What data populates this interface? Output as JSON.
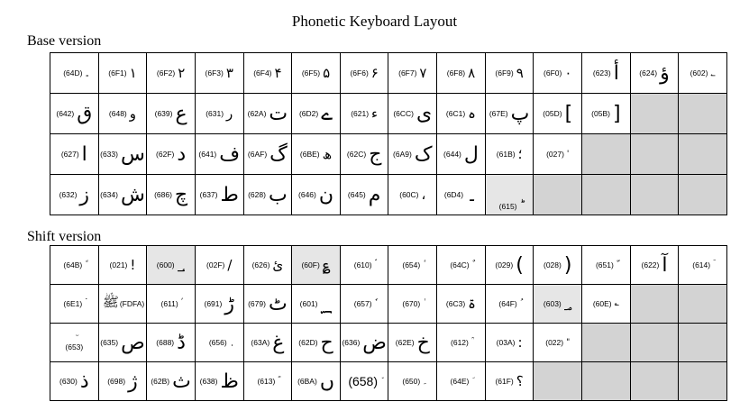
{
  "title": "Phonetic Keyboard Layout",
  "base": {
    "heading": "Base version",
    "rows": [
      [
        {
          "code": "(64D)",
          "glyph": "ٍ",
          "size": "small"
        },
        {
          "code": "(6F1)",
          "glyph": "۱"
        },
        {
          "code": "(6F2)",
          "glyph": "۲"
        },
        {
          "code": "(6F3)",
          "glyph": "۳"
        },
        {
          "code": "(6F4)",
          "glyph": "۴"
        },
        {
          "code": "(6F5)",
          "glyph": "۵"
        },
        {
          "code": "(6F6)",
          "glyph": "۶"
        },
        {
          "code": "(6F7)",
          "glyph": "۷"
        },
        {
          "code": "(6F8)",
          "glyph": "۸"
        },
        {
          "code": "(6F9)",
          "glyph": "۹"
        },
        {
          "code": "(6F0)",
          "glyph": "۰"
        },
        {
          "code": "(623)",
          "glyph": "أ",
          "size": "big"
        },
        {
          "code": "(624)",
          "glyph": "ؤ",
          "size": "big"
        },
        {
          "code": "(602)",
          "glyph": "؂",
          "size": "small"
        }
      ],
      [
        {
          "code": "(642)",
          "glyph": "ق",
          "size": "big",
          "glyph_first": false
        },
        {
          "code": "(648)",
          "glyph": "و"
        },
        {
          "code": "(639)",
          "glyph": "ع",
          "size": "big"
        },
        {
          "code": "(631)",
          "glyph": "ر"
        },
        {
          "code": "(62A)",
          "glyph": "ت",
          "size": "big"
        },
        {
          "code": "(6D2)",
          "glyph": "ے",
          "size": "big"
        },
        {
          "code": "(621)",
          "glyph": "ء"
        },
        {
          "code": "(6CC)",
          "glyph": "ی",
          "size": "big"
        },
        {
          "code": "(6C1)",
          "glyph": "ہ"
        },
        {
          "code": "(67E)",
          "glyph": "پ",
          "size": "big"
        },
        {
          "code": "(05D)",
          "glyph": "[",
          "size": "big"
        },
        {
          "code": "(05B)",
          "glyph": "]",
          "size": "big"
        },
        {
          "code": "",
          "glyph": "",
          "shade": "dark"
        },
        {
          "code": "",
          "glyph": "",
          "shade": "dark"
        }
      ],
      [
        {
          "code": "(627)",
          "glyph": "ا",
          "size": "big"
        },
        {
          "code": "(633)",
          "glyph": "س",
          "size": "big"
        },
        {
          "code": "(62F)",
          "glyph": "د",
          "size": "big"
        },
        {
          "code": "(641)",
          "glyph": "ف",
          "size": "big"
        },
        {
          "code": "(6AF)",
          "glyph": "گ",
          "size": "big"
        },
        {
          "code": "(6BE)",
          "glyph": "ھ"
        },
        {
          "code": "(62C)",
          "glyph": "ج",
          "size": "big"
        },
        {
          "code": "(6A9)",
          "glyph": "ک",
          "size": "big"
        },
        {
          "code": "(644)",
          "glyph": "ل",
          "size": "big"
        },
        {
          "code": "(61B)",
          "glyph": "؛"
        },
        {
          "code": "(027)",
          "glyph": "'",
          "size": "small"
        },
        {
          "code": "",
          "glyph": "",
          "shade": "dark"
        },
        {
          "code": "",
          "glyph": "",
          "shade": "dark"
        },
        {
          "code": "",
          "glyph": "",
          "shade": "dark"
        }
      ],
      [
        {
          "code": "(632)",
          "glyph": "ز",
          "size": "big"
        },
        {
          "code": "(634)",
          "glyph": "ش",
          "size": "big"
        },
        {
          "code": "(686)",
          "glyph": "چ",
          "size": "big"
        },
        {
          "code": "(637)",
          "glyph": "ط",
          "size": "big"
        },
        {
          "code": "(628)",
          "glyph": "ب",
          "size": "big"
        },
        {
          "code": "(646)",
          "glyph": "ن",
          "size": "big"
        },
        {
          "code": "(645)",
          "glyph": "م",
          "size": "big"
        },
        {
          "code": "(60C)",
          "glyph": "،"
        },
        {
          "code": "(6D4)",
          "glyph": "۔",
          "size": "big"
        },
        {
          "code": "(615)",
          "glyph": "ؕ",
          "shade": "light",
          "bottom": true
        },
        {
          "code": "",
          "glyph": "",
          "shade": "dark"
        },
        {
          "code": "",
          "glyph": "",
          "shade": "dark"
        },
        {
          "code": "",
          "glyph": "",
          "shade": "dark"
        },
        {
          "code": "",
          "glyph": "",
          "shade": "dark"
        }
      ]
    ]
  },
  "shift": {
    "heading": "Shift version",
    "rows": [
      [
        {
          "code": "(64B)",
          "glyph": "ً",
          "size": "small"
        },
        {
          "code": "(021)",
          "glyph": "!"
        },
        {
          "code": "(600)",
          "glyph": "؀",
          "shade": "light",
          "top": true
        },
        {
          "code": "(02F)",
          "glyph": "/"
        },
        {
          "code": "(626)",
          "glyph": "ئ"
        },
        {
          "code": "(60F)",
          "glyph": "؏",
          "shade": "light"
        },
        {
          "code": "(610)",
          "glyph": "ؐ",
          "size": "small"
        },
        {
          "code": "(654)",
          "glyph": "ٔ",
          "size": "small"
        },
        {
          "code": "(64C)",
          "glyph": "ٌ",
          "size": "small"
        },
        {
          "code": "(029)",
          "glyph": "(",
          "size": "big"
        },
        {
          "code": "(028)",
          "glyph": ")",
          "size": "big"
        },
        {
          "code": "(651)",
          "glyph": "ّ",
          "size": "small"
        },
        {
          "code": "(622)",
          "glyph": "آ",
          "size": "big"
        },
        {
          "code": "(614)",
          "glyph": "ؔ",
          "size": "small"
        }
      ],
      [
        {
          "code": "(6E1)",
          "glyph": "ۡ",
          "size": "small"
        },
        {
          "code": "(FDFA)",
          "glyph": "ﷺ",
          "glyph_first": true
        },
        {
          "code": "(611)",
          "glyph": "ؑ",
          "size": "small"
        },
        {
          "code": "(691)",
          "glyph": "ڑ",
          "size": "big"
        },
        {
          "code": "(679)",
          "glyph": "ٹ",
          "size": "big"
        },
        {
          "code": "(601)",
          "glyph": "؁",
          "size": "big"
        },
        {
          "code": "(657)",
          "glyph": "ٗ",
          "size": "small"
        },
        {
          "code": "(670)",
          "glyph": "ٰ",
          "size": "small"
        },
        {
          "code": "(6C3)",
          "glyph": "ۃ"
        },
        {
          "code": "(64F)",
          "glyph": "ُ",
          "size": "small"
        },
        {
          "code": "(603)",
          "glyph": "؃",
          "shade": "light"
        },
        {
          "code": "(60E)",
          "glyph": "؎",
          "size": "small"
        },
        {
          "code": "",
          "glyph": "",
          "shade": "dark"
        },
        {
          "code": "",
          "glyph": "",
          "shade": "dark"
        }
      ],
      [
        {
          "code": "(653)",
          "glyph": "ٓ",
          "size": "small",
          "stack": true
        },
        {
          "code": "(635)",
          "glyph": "ص",
          "size": "big"
        },
        {
          "code": "(688)",
          "glyph": "ڈ",
          "size": "big"
        },
        {
          "code": "(656)",
          "glyph": "ٖ",
          "size": "small"
        },
        {
          "code": "(63A)",
          "glyph": "غ",
          "size": "big"
        },
        {
          "code": "(62D)",
          "glyph": "ح",
          "size": "big"
        },
        {
          "code": "(636)",
          "glyph": "ض",
          "size": "big"
        },
        {
          "code": "(62E)",
          "glyph": "خ",
          "size": "big"
        },
        {
          "code": "(612)",
          "glyph": "ؒ",
          "size": "small"
        },
        {
          "code": "(03A)",
          "glyph": ":"
        },
        {
          "code": "(022)",
          "glyph": "\"",
          "size": "small"
        },
        {
          "code": "",
          "glyph": "",
          "shade": "dark"
        },
        {
          "code": "",
          "glyph": "",
          "shade": "dark"
        },
        {
          "code": "",
          "glyph": "",
          "shade": "dark"
        }
      ],
      [
        {
          "code": "(630)",
          "glyph": "ذ",
          "size": "big"
        },
        {
          "code": "(698)",
          "glyph": "ژ",
          "size": "big"
        },
        {
          "code": "(62B)",
          "glyph": "ث",
          "size": "big"
        },
        {
          "code": "(638)",
          "glyph": "ظ",
          "size": "big"
        },
        {
          "code": "(613)",
          "glyph": "ؓ",
          "size": "small"
        },
        {
          "code": "(6BA)",
          "glyph": "ں",
          "size": "big"
        },
        {
          "code": "(658)",
          "glyph": "٘",
          "size": "small",
          "codebig": true
        },
        {
          "code": "(650)",
          "glyph": "ِ",
          "size": "small"
        },
        {
          "code": "(64E)",
          "glyph": "َ",
          "size": "small"
        },
        {
          "code": "(61F)",
          "glyph": "؟"
        },
        {
          "code": "",
          "glyph": "",
          "shade": "dark"
        },
        {
          "code": "",
          "glyph": "",
          "shade": "dark"
        },
        {
          "code": "",
          "glyph": "",
          "shade": "dark"
        },
        {
          "code": "",
          "glyph": "",
          "shade": "dark"
        }
      ]
    ]
  }
}
